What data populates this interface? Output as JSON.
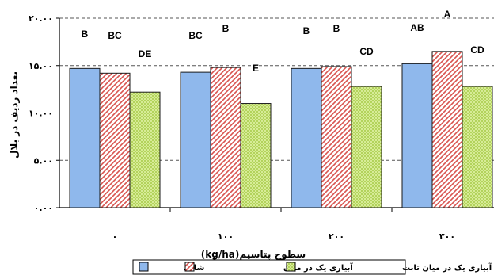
{
  "chart_data": {
    "type": "bar",
    "title": "",
    "xlabel": "سطوح پتاسیم(kg/ha)",
    "ylabel": "تعداد ردیف در بلال",
    "categories": [
      "۰",
      "۱۰۰",
      "۲۰۰",
      "۳۰۰"
    ],
    "ylim": [
      0,
      20
    ],
    "yticks": [
      {
        "value": 0,
        "label": "۰.۰۰"
      },
      {
        "value": 5,
        "label": "۵.۰۰"
      },
      {
        "value": 10,
        "label": "۱۰.۰۰"
      },
      {
        "value": 15,
        "label": "۱۵.۰۰"
      },
      {
        "value": 20,
        "label": "۲۰.۰۰"
      }
    ],
    "grid": "horizontal-dashed",
    "legend_position": "bottom",
    "series": [
      {
        "name": "شاهد",
        "pattern": "solid",
        "color": "#8fb8ec",
        "values": [
          14.7,
          14.3,
          14.7,
          15.2
        ],
        "labels": [
          "B",
          "BC",
          "B",
          "AB"
        ]
      },
      {
        "name": "آبیاری یک در میان",
        "pattern": "hatch",
        "color": "#d9534f",
        "values": [
          14.2,
          14.8,
          14.9,
          16.5
        ],
        "labels": [
          "BC",
          "B",
          "B",
          "A"
        ]
      },
      {
        "name": "آبیاری یک در میان ثابت",
        "pattern": "checker",
        "color": "#c6e07a",
        "values": [
          12.2,
          11.0,
          12.8,
          12.8
        ],
        "labels": [
          "DE",
          "E",
          "CD",
          "CD"
        ]
      }
    ]
  }
}
